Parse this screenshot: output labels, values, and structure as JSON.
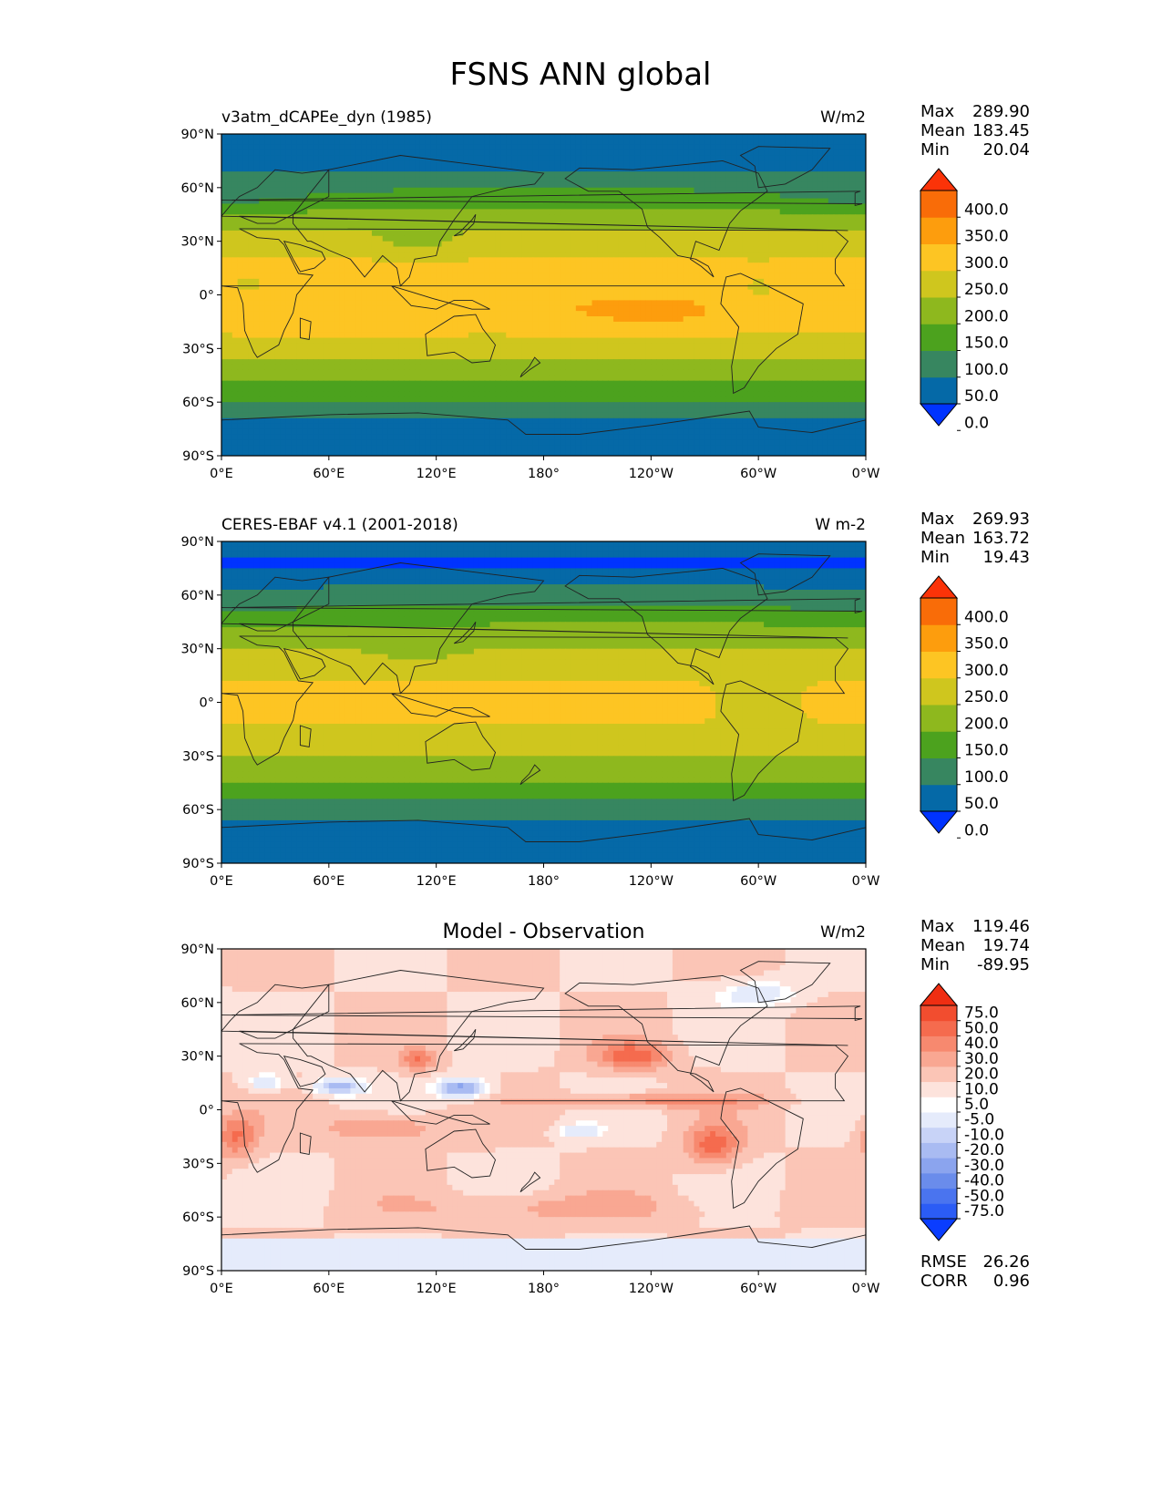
{
  "figure": {
    "title": "FSNS ANN global"
  },
  "axes": {
    "lat_ticks": [
      "90°N",
      "60°N",
      "30°N",
      "0°",
      "30°S",
      "60°S",
      "90°S"
    ],
    "lon_ticks": [
      "0°E",
      "60°E",
      "120°E",
      "180°",
      "120°W",
      "60°W",
      "0°W"
    ]
  },
  "chart_data": [
    {
      "type": "heatmap",
      "title": "v3atm_dCAPEe_dyn (1985)",
      "units": "W/m2",
      "stats": {
        "max_label": "Max",
        "max": "289.90",
        "mean_label": "Mean",
        "mean": "183.45",
        "min_label": "Min",
        "min": "20.04"
      },
      "colorbar": {
        "ticks": [
          "400.0",
          "350.0",
          "300.0",
          "250.0",
          "200.0",
          "150.0",
          "100.0",
          "50.0",
          "0.0"
        ],
        "colors": [
          "#0033ff",
          "#0569a7",
          "#378660",
          "#4ca21e",
          "#8eb81e",
          "#cfc61e",
          "#fdc523",
          "#fd9d0d",
          "#f96c08",
          "#fb3308"
        ]
      },
      "pattern": "model"
    },
    {
      "type": "heatmap",
      "title": "CERES-EBAF v4.1 (2001-2018)",
      "units": "W m-2",
      "stats": {
        "max_label": "Max",
        "max": "269.93",
        "mean_label": "Mean",
        "mean": "163.72",
        "min_label": "Min",
        "min": "19.43"
      },
      "colorbar": {
        "ticks": [
          "400.0",
          "350.0",
          "300.0",
          "250.0",
          "200.0",
          "150.0",
          "100.0",
          "50.0",
          "0.0"
        ],
        "colors": [
          "#0033ff",
          "#0569a7",
          "#378660",
          "#4ca21e",
          "#8eb81e",
          "#cfc61e",
          "#fdc523",
          "#fd9d0d",
          "#f96c08",
          "#fb3308"
        ]
      },
      "pattern": "obs"
    },
    {
      "type": "heatmap",
      "title": "Model - Observation",
      "units": "W/m2",
      "stats": {
        "max_label": "Max",
        "max": "119.46",
        "mean_label": "Mean",
        "mean": "19.74",
        "min_label": "Min",
        "min": "-89.95"
      },
      "colorbar": {
        "ticks": [
          "75.0",
          "50.0",
          "40.0",
          "30.0",
          "20.0",
          "10.0",
          "5.0",
          "-5.0",
          "-10.0",
          "-20.0",
          "-30.0",
          "-40.0",
          "-50.0",
          "-75.0"
        ],
        "colors": [
          "#0a3dff",
          "#2b5cf5",
          "#4a74ef",
          "#6a8ceb",
          "#8ba4ee",
          "#a9bbf2",
          "#c8d3f7",
          "#e5ebfb",
          "#ffffff",
          "#fde3dc",
          "#fbc5b6",
          "#f9a792",
          "#f7896f",
          "#f56b4e",
          "#f24d2f",
          "#ef2e12"
        ]
      },
      "footer": {
        "rmse_label": "RMSE",
        "rmse": "26.26",
        "corr_label": "CORR",
        "corr": "0.96"
      },
      "pattern": "diff"
    }
  ]
}
